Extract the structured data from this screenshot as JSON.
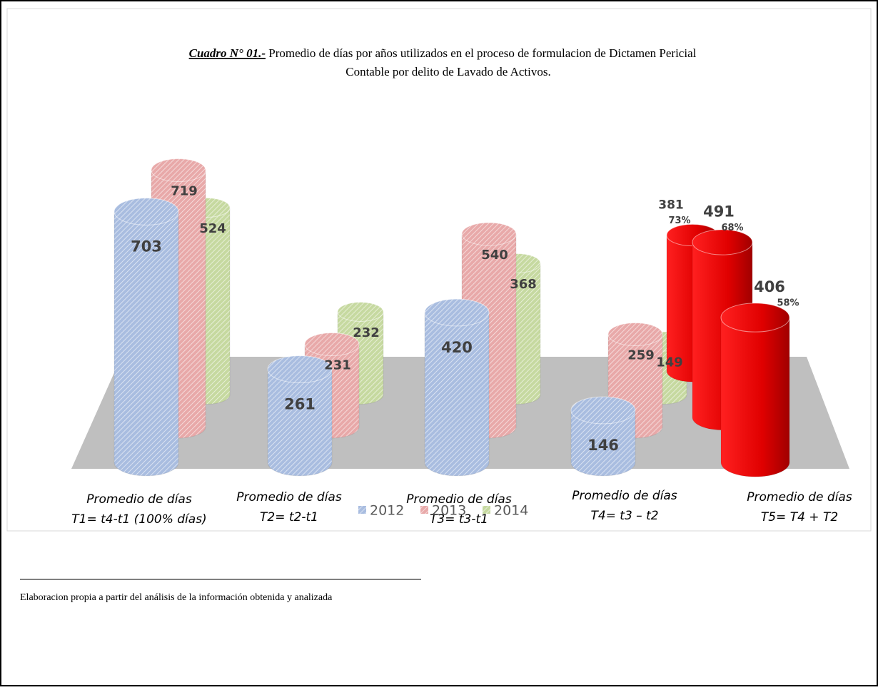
{
  "chart_data": {
    "type": "cylinder",
    "title_label": "Cuadro N° 01.-",
    "title_lines": [
      "Promedio de días por años utilizados en el proceso de formulacion de Dictamen Pericial",
      "Contable por delito de Lavado de Activos."
    ],
    "categories": [
      [
        "Promedio de días",
        "T1= t4-t1 (100% días)"
      ],
      [
        "Promedio de días",
        "T2= t2-t1"
      ],
      [
        "Promedio de días",
        "T3= t3-t1"
      ],
      [
        "Promedio de días",
        "T4= t3 – t2"
      ],
      [
        "Promedio de días",
        "T5= T4 + T2"
      ]
    ],
    "series": [
      {
        "name": "2012",
        "color": "#a9bde0",
        "values": [
          703,
          261,
          420,
          146,
          null
        ]
      },
      {
        "name": "2013",
        "color": "#e8a9a9",
        "values": [
          719,
          231,
          540,
          259,
          null
        ]
      },
      {
        "name": "2014",
        "color": "#c6d9a0",
        "values": [
          524,
          232,
          368,
          149,
          null
        ]
      }
    ],
    "highlight": {
      "color": "#e00000",
      "values": [
        381,
        491,
        406
      ],
      "percent_labels": [
        "73%",
        "68%",
        "58%"
      ]
    },
    "footnote": "Elaboracion propia a partir del análisis de la información obtenida y analizada"
  }
}
